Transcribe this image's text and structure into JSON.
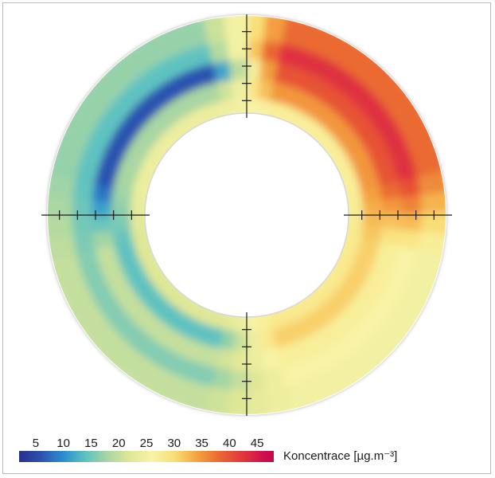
{
  "chart_data": {
    "type": "heatmap",
    "shape": "annulus",
    "title": "",
    "legend": {
      "label": "Koncentrace [µg.m⁻³]",
      "ticks": [
        5,
        10,
        15,
        20,
        25,
        30,
        35,
        40,
        45
      ],
      "range": [
        2,
        48
      ],
      "placement": "bottom-left"
    },
    "colormap": [
      {
        "value": 2,
        "color": "#2b2f8c"
      },
      {
        "value": 6,
        "color": "#2c52b0"
      },
      {
        "value": 10,
        "color": "#2a8fd0"
      },
      {
        "value": 14,
        "color": "#5ec2c0"
      },
      {
        "value": 18,
        "color": "#a9d6a3"
      },
      {
        "value": 22,
        "color": "#dfe796"
      },
      {
        "value": 26,
        "color": "#f8f3a6"
      },
      {
        "value": 30,
        "color": "#f9de77"
      },
      {
        "value": 34,
        "color": "#f4a541"
      },
      {
        "value": 38,
        "color": "#ea6a31"
      },
      {
        "value": 42,
        "color": "#e33b3b"
      },
      {
        "value": 46,
        "color": "#d2104e"
      },
      {
        "value": 48,
        "color": "#c4084b"
      }
    ],
    "sectors": [
      {
        "quadrant": "top-right",
        "radial_levels": "inner to outer",
        "values": [
          27,
          35,
          40,
          43,
          38
        ]
      },
      {
        "quadrant": "top-left",
        "radial_levels": "inner to outer",
        "values": [
          24,
          18,
          6,
          14,
          17
        ]
      },
      {
        "quadrant": "bottom-left",
        "radial_levels": "inner to outer",
        "values": [
          22,
          14,
          20,
          16,
          20
        ]
      },
      {
        "quadrant": "bottom-right",
        "radial_levels": "inner to outer",
        "values": [
          28,
          31,
          27,
          26,
          25
        ]
      }
    ],
    "axes": {
      "crosshair": true,
      "ticks_per_arm": 5
    },
    "grid": false
  }
}
